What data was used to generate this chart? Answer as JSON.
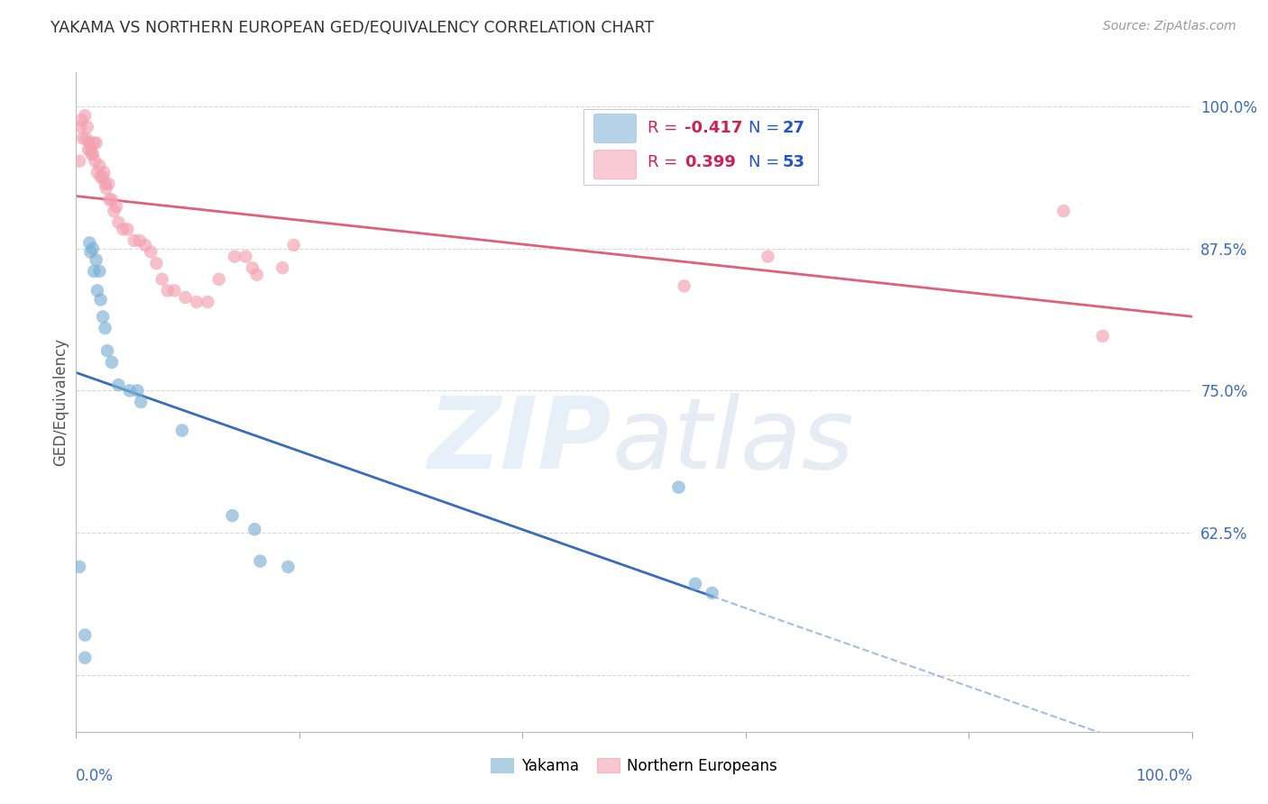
{
  "title": "YAKAMA VS NORTHERN EUROPEAN GED/EQUIVALENCY CORRELATION CHART",
  "source": "Source: ZipAtlas.com",
  "ylabel": "GED/Equivalency",
  "yakama_R": -0.417,
  "yakama_N": 27,
  "northern_R": 0.399,
  "northern_N": 53,
  "yakama_color": "#7bafd4",
  "northern_color": "#f4a0b0",
  "yakama_line_color": "#3a6bbf",
  "northern_line_color": "#e0607a",
  "background_color": "#ffffff",
  "grid_color": "#d8d8d8",
  "xlim": [
    0.0,
    1.0
  ],
  "ylim": [
    0.45,
    1.03
  ],
  "yticks": [
    0.5,
    0.625,
    0.75,
    0.875,
    1.0
  ],
  "ytick_labels": [
    "",
    "62.5%",
    "75.0%",
    "87.5%",
    "100.0%"
  ],
  "title_color": "#333333",
  "legend_R_color": "#cc2255",
  "legend_N_color": "#2255cc",
  "yakama_x": [
    0.003,
    0.008,
    0.008,
    0.012,
    0.013,
    0.015,
    0.016,
    0.018,
    0.019,
    0.021,
    0.022,
    0.024,
    0.026,
    0.028,
    0.032,
    0.038,
    0.048,
    0.055,
    0.058,
    0.095,
    0.14,
    0.16,
    0.165,
    0.19,
    0.54,
    0.555,
    0.57
  ],
  "yakama_y": [
    0.595,
    0.535,
    0.515,
    0.88,
    0.872,
    0.875,
    0.855,
    0.865,
    0.838,
    0.855,
    0.83,
    0.815,
    0.805,
    0.785,
    0.775,
    0.755,
    0.75,
    0.75,
    0.74,
    0.715,
    0.64,
    0.628,
    0.6,
    0.595,
    0.665,
    0.58,
    0.572
  ],
  "northern_x": [
    0.003,
    0.004,
    0.005,
    0.006,
    0.008,
    0.009,
    0.01,
    0.011,
    0.012,
    0.013,
    0.014,
    0.015,
    0.016,
    0.017,
    0.018,
    0.019,
    0.021,
    0.022,
    0.024,
    0.025,
    0.026,
    0.027,
    0.029,
    0.03,
    0.032,
    0.034,
    0.036,
    0.038,
    0.042,
    0.046,
    0.052,
    0.057,
    0.062,
    0.067,
    0.072,
    0.077,
    0.082,
    0.088,
    0.098,
    0.108,
    0.118,
    0.128,
    0.142,
    0.152,
    0.158,
    0.162,
    0.185,
    0.195,
    0.51,
    0.545,
    0.62,
    0.885,
    0.92
  ],
  "northern_y": [
    0.952,
    0.982,
    0.988,
    0.972,
    0.992,
    0.972,
    0.982,
    0.962,
    0.968,
    0.962,
    0.958,
    0.958,
    0.968,
    0.952,
    0.968,
    0.942,
    0.948,
    0.938,
    0.938,
    0.942,
    0.932,
    0.928,
    0.932,
    0.918,
    0.918,
    0.908,
    0.912,
    0.898,
    0.892,
    0.892,
    0.882,
    0.882,
    0.878,
    0.872,
    0.862,
    0.848,
    0.838,
    0.838,
    0.832,
    0.828,
    0.828,
    0.848,
    0.868,
    0.868,
    0.858,
    0.852,
    0.858,
    0.878,
    0.968,
    0.842,
    0.868,
    0.908,
    0.798
  ],
  "yakama_line_solid_end": 0.57,
  "bottom_legend_labels": [
    "Yakama",
    "Northern Europeans"
  ]
}
